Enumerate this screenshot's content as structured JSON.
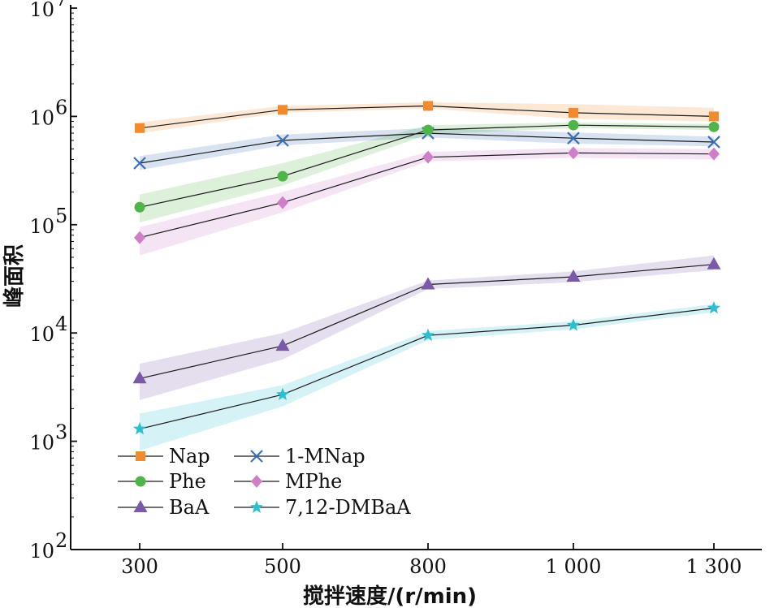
{
  "chart_data": {
    "type": "line",
    "x_categories": [
      "300",
      "500",
      "800",
      "1 000",
      "1 300"
    ],
    "xlabel": "搅拌速度/(r/min)",
    "ylabel": "峰面积",
    "yscale": "log",
    "ylim": [
      100,
      10000000
    ],
    "y_ticks": [
      {
        "value": 100,
        "base": "10",
        "exp": "2"
      },
      {
        "value": 1000,
        "base": "10",
        "exp": "3"
      },
      {
        "value": 10000,
        "base": "10",
        "exp": "4"
      },
      {
        "value": 100000,
        "base": "10",
        "exp": "5"
      },
      {
        "value": 1000000,
        "base": "10",
        "exp": "6"
      },
      {
        "value": 10000000,
        "base": "10",
        "exp": "7"
      }
    ],
    "grid": false,
    "legend_position": "bottom-left",
    "series": [
      {
        "name": "Nap",
        "color": "#f28a2e",
        "marker": "square",
        "values": [
          780000,
          1150000,
          1250000,
          1080000,
          1000000
        ],
        "lower": [
          700000,
          1080000,
          1180000,
          950000,
          900000
        ],
        "upper": [
          880000,
          1250000,
          1350000,
          1300000,
          1200000
        ]
      },
      {
        "name": "1-MNap",
        "color": "#3a6fb5",
        "marker": "x",
        "values": [
          370000,
          600000,
          700000,
          630000,
          580000
        ],
        "lower": [
          320000,
          540000,
          640000,
          560000,
          530000
        ],
        "upper": [
          430000,
          680000,
          780000,
          710000,
          650000
        ]
      },
      {
        "name": "Phe",
        "color": "#4fb548",
        "marker": "circle",
        "values": [
          145000,
          280000,
          750000,
          830000,
          800000
        ],
        "lower": [
          105000,
          230000,
          680000,
          780000,
          750000
        ],
        "upper": [
          190000,
          370000,
          830000,
          880000,
          850000
        ]
      },
      {
        "name": "MPhe",
        "color": "#cf7fc6",
        "marker": "diamond",
        "values": [
          76000,
          160000,
          420000,
          460000,
          450000
        ],
        "lower": [
          52000,
          130000,
          385000,
          415000,
          400000
        ],
        "upper": [
          95000,
          200000,
          470000,
          510000,
          500000
        ]
      },
      {
        "name": "BaA",
        "color": "#7a59a8",
        "marker": "triangle",
        "values": [
          3800,
          7600,
          28000,
          33000,
          43000
        ],
        "lower": [
          2400,
          5700,
          25500,
          29500,
          38000
        ],
        "upper": [
          5200,
          10000,
          30500,
          37000,
          52000
        ]
      },
      {
        "name": "7,12-DMBaA",
        "color": "#2bbfd0",
        "marker": "star",
        "values": [
          1300,
          2700,
          9500,
          11800,
          17000
        ],
        "lower": [
          820,
          2100,
          8600,
          10800,
          15500
        ],
        "upper": [
          1800,
          3300,
          10400,
          12800,
          18500
        ]
      }
    ]
  }
}
